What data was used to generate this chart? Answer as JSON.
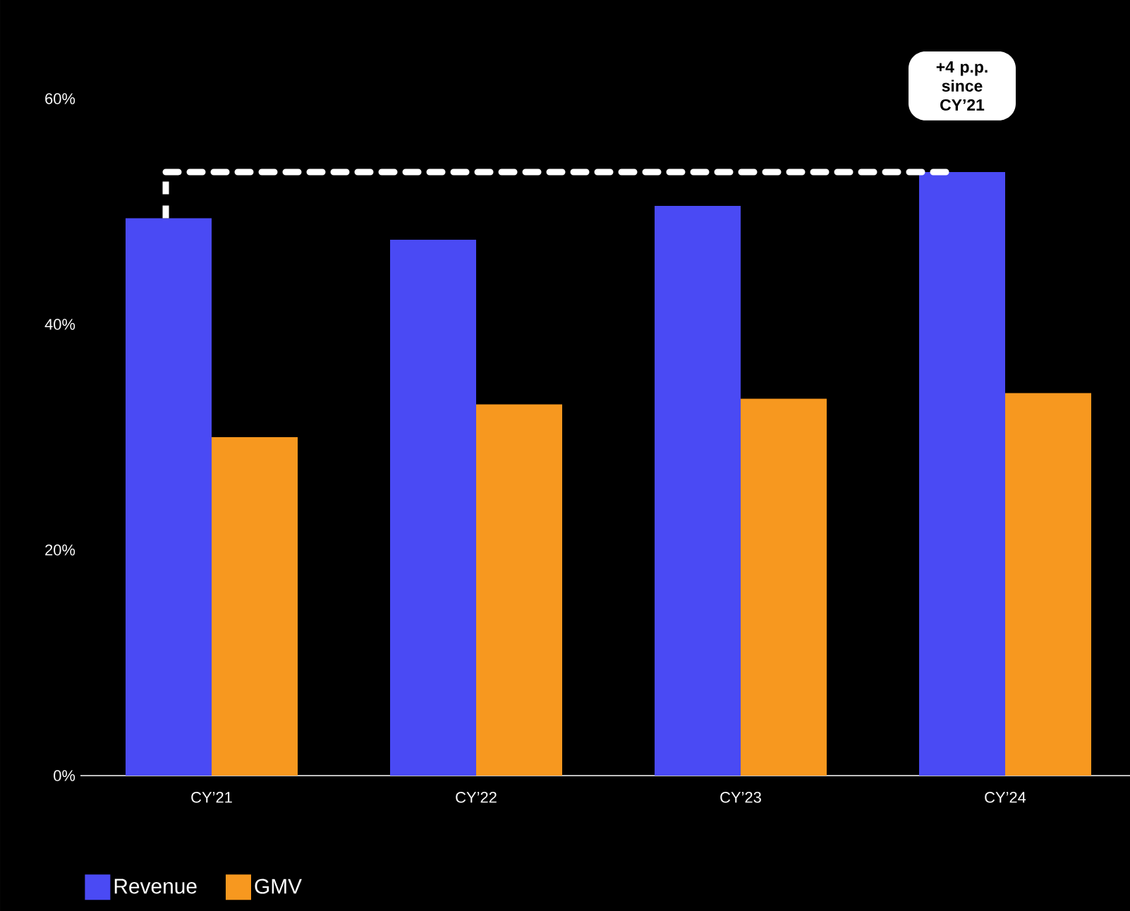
{
  "chart_data": {
    "type": "bar",
    "categories": [
      "CY’21",
      "CY’22",
      "CY’23",
      "CY’24"
    ],
    "series": [
      {
        "name": "Revenue",
        "color": "#4a4af4",
        "values": [
          49.4,
          47.5,
          50.5,
          53.5
        ]
      },
      {
        "name": "GMV",
        "color": "#f7981f",
        "values": [
          30,
          32.9,
          33.4,
          33.9
        ]
      }
    ],
    "ylim": [
      0,
      60
    ],
    "yticks": [
      {
        "value": 0,
        "label": "0%"
      },
      {
        "value": 20,
        "label": "20%"
      },
      {
        "value": 40,
        "label": "40%"
      },
      {
        "value": 60,
        "label": "60%"
      }
    ],
    "legend": "bottom left",
    "ref_lines": [
      {
        "axis": "y",
        "value": 53.5,
        "color": "#ffffff",
        "line_style": "dashed"
      }
    ],
    "annotations": [
      "+4 p.p. since CY’21"
    ]
  }
}
